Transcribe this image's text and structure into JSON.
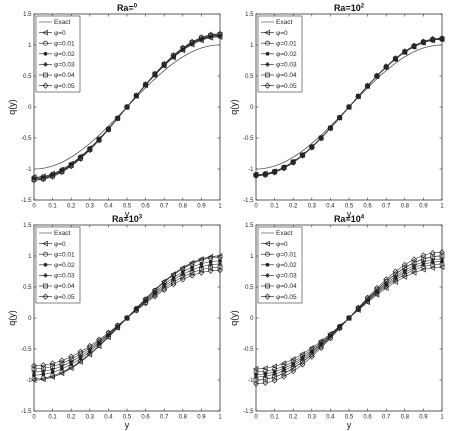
{
  "chart_data": [
    {
      "type": "line",
      "title": {
        "base": "Ra=",
        "exp": "0"
      },
      "xlabel": "y",
      "ylabel": "q(y)",
      "xlim": [
        0,
        1
      ],
      "ylim": [
        -1.5,
        1.5
      ],
      "xticks": [
        "0",
        "0.1",
        "0.2",
        "0.3",
        "0.4",
        "0.5",
        "0.6",
        "0.7",
        "0.8",
        "0.9",
        "1"
      ],
      "yticks": [
        "-1.5",
        "-1",
        "-0.5",
        "0",
        "0.5",
        "1",
        "1.5"
      ],
      "legend_position": "top-left",
      "exact": {
        "name": "Exact",
        "amplitude": 1.0
      },
      "series": [
        {
          "name": "φ=0",
          "marker": "triangle-left",
          "amplitude": 1.13
        },
        {
          "name": "φ=0.01",
          "marker": "circle",
          "amplitude": 1.14
        },
        {
          "name": "φ=0.02",
          "marker": "dot",
          "amplitude": 1.15
        },
        {
          "name": "φ=0.03",
          "marker": "star",
          "amplitude": 1.16
        },
        {
          "name": "φ=0.04",
          "marker": "square",
          "amplitude": 1.17
        },
        {
          "name": "φ=0.05",
          "marker": "diamond",
          "amplitude": 1.18
        }
      ]
    },
    {
      "type": "line",
      "title": {
        "base": "Ra=10",
        "exp": "2"
      },
      "xlabel": "y",
      "ylabel": "q(y)",
      "xlim": [
        0,
        1
      ],
      "ylim": [
        -1.5,
        1.5
      ],
      "xticks": [
        "0",
        "0.1",
        "0.2",
        "0.3",
        "0.4",
        "0.5",
        "0.6",
        "0.7",
        "0.8",
        "0.9",
        "1"
      ],
      "yticks": [
        "-1.5",
        "-1",
        "-0.5",
        "0",
        "0.5",
        "1",
        "1.5"
      ],
      "legend_position": "top-left",
      "exact": {
        "name": "Exact",
        "amplitude": 1.0
      },
      "series": [
        {
          "name": "φ=0",
          "marker": "triangle-left",
          "amplitude": 1.09
        },
        {
          "name": "φ=0.01",
          "marker": "circle",
          "amplitude": 1.09
        },
        {
          "name": "φ=0.02",
          "marker": "dot",
          "amplitude": 1.1
        },
        {
          "name": "φ=0.03",
          "marker": "star",
          "amplitude": 1.1
        },
        {
          "name": "φ=0.04",
          "marker": "square",
          "amplitude": 1.1
        },
        {
          "name": "φ=0.05",
          "marker": "diamond",
          "amplitude": 1.11
        }
      ]
    },
    {
      "type": "line",
      "title": {
        "base": "Ra=10",
        "exp": "3"
      },
      "xlabel": "y",
      "ylabel": "q(y)",
      "xlim": [
        0,
        1
      ],
      "ylim": [
        -1.5,
        1.5
      ],
      "xticks": [
        "0",
        "0.1",
        "0.2",
        "0.3",
        "0.4",
        "0.5",
        "0.6",
        "0.7",
        "0.8",
        "0.9",
        "1"
      ],
      "yticks": [
        "-1.5",
        "-1",
        "-0.5",
        "0",
        "0.5",
        "1",
        "1.5"
      ],
      "legend_position": "top-left",
      "exact": {
        "name": "Exact",
        "amplitude": 1.0
      },
      "series": [
        {
          "name": "φ=0",
          "marker": "triangle-left",
          "amplitude": 1.0
        },
        {
          "name": "φ=0.01",
          "marker": "circle",
          "amplitude": 0.98
        },
        {
          "name": "φ=0.02",
          "marker": "dot",
          "amplitude": 0.92
        },
        {
          "name": "φ=0.03",
          "marker": "star",
          "amplitude": 0.87
        },
        {
          "name": "φ=0.04",
          "marker": "square",
          "amplitude": 0.82
        },
        {
          "name": "φ=0.05",
          "marker": "diamond",
          "amplitude": 0.77
        }
      ]
    },
    {
      "type": "line",
      "title": {
        "base": "Ra=10",
        "exp": "4"
      },
      "xlabel": "y",
      "ylabel": "q(y)",
      "xlim": [
        0,
        1
      ],
      "ylim": [
        -1.5,
        1.5
      ],
      "xticks": [
        "0",
        "0.1",
        "0.2",
        "0.3",
        "0.4",
        "0.5",
        "0.6",
        "0.7",
        "0.8",
        "0.9",
        "1"
      ],
      "yticks": [
        "-1.5",
        "-1",
        "-0.5",
        "0",
        "0.5",
        "1",
        "1.5"
      ],
      "legend_position": "top-left",
      "exact": {
        "name": "Exact",
        "amplitude": 1.0
      },
      "series": [
        {
          "name": "φ=0",
          "marker": "triangle-left",
          "amplitude": 0.82
        },
        {
          "name": "φ=0.01",
          "marker": "circle",
          "amplitude": 0.87
        },
        {
          "name": "φ=0.02",
          "marker": "dot",
          "amplitude": 0.91
        },
        {
          "name": "φ=0.03",
          "marker": "star",
          "amplitude": 0.95
        },
        {
          "name": "φ=0.04",
          "marker": "square",
          "amplitude": 1.0
        },
        {
          "name": "φ=0.05",
          "marker": "diamond",
          "amplitude": 1.06
        }
      ]
    }
  ]
}
